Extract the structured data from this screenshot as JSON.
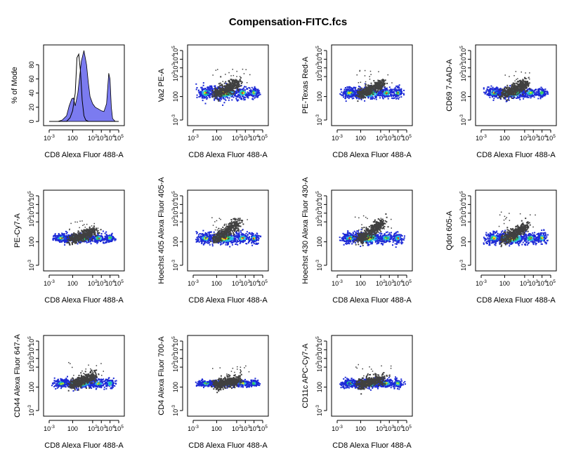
{
  "title": "Compensation-FITC.fcs",
  "colors": {
    "histogram_fill": "#7b7bf0",
    "overlay_points": "#404040",
    "density_low": "#1e2bd6",
    "density_mid1": "#2fb8e8",
    "density_mid2": "#22c46a",
    "density_mid3": "#e8e81a",
    "density_high": "#e81a1a"
  },
  "chart_data": [
    {
      "type": "area",
      "xlabel": "CD8 Alexa Fluor 488-A",
      "ylabel": "% of Mode",
      "yticks": [
        "0",
        "20",
        "40",
        "60",
        "80"
      ],
      "ylim": [
        0,
        100
      ],
      "xscale": "log",
      "xticks": [
        {
          "m": "10",
          "e": "-3"
        },
        {
          "m": "100",
          "e": ""
        },
        {
          "m": "10",
          "e": "2"
        },
        {
          "m": "10",
          "e": "3"
        },
        {
          "m": "10",
          "e": "4"
        },
        {
          "m": "10",
          "e": "5"
        }
      ],
      "series": [
        {
          "style": "filled",
          "x": [
            -3,
            -2,
            -1.5,
            -1,
            -0.7,
            -0.4,
            -0.2,
            0,
            0.3,
            0.7,
            1.0,
            1.3,
            1.5,
            1.7,
            2.0,
            2.3,
            2.6,
            3.0,
            3.3,
            3.6,
            3.85,
            4.0,
            4.15,
            4.3,
            4.6,
            5
          ],
          "y": [
            0,
            0,
            2,
            8,
            22,
            32,
            33,
            22,
            40,
            85,
            100,
            80,
            55,
            35,
            25,
            20,
            18,
            15,
            14,
            25,
            68,
            60,
            20,
            4,
            0,
            0
          ]
        },
        {
          "style": "outline",
          "x": [
            -3,
            -1.0,
            -0.6,
            -0.3,
            0.0,
            0.2,
            0.4,
            0.6,
            0.8,
            1.0,
            1.2,
            1.5,
            2.0,
            5
          ],
          "y": [
            0,
            0,
            5,
            15,
            40,
            90,
            95,
            70,
            30,
            8,
            2,
            0,
            0,
            0
          ]
        }
      ]
    },
    {
      "type": "scatter",
      "xlabel": "CD8 Alexa Fluor 488-A",
      "ylabel": "Va2 PE-A",
      "xscale": "log",
      "yscale": "log"
    },
    {
      "type": "scatter",
      "xlabel": "CD8 Alexa Fluor 488-A",
      "ylabel": "PE-Texas Red-A",
      "xscale": "log",
      "yscale": "log"
    },
    {
      "type": "scatter",
      "xlabel": "CD8 Alexa Fluor 488-A",
      "ylabel": "CD69 7-AAD-A",
      "xscale": "log",
      "yscale": "log"
    },
    {
      "type": "scatter",
      "xlabel": "CD8 Alexa Fluor 488-A",
      "ylabel": "PE-Cy7-A",
      "xscale": "log",
      "yscale": "log"
    },
    {
      "type": "scatter",
      "xlabel": "CD8 Alexa Fluor 488-A",
      "ylabel": "Hoechst 405 Alexa Fluor 405-A",
      "xscale": "log",
      "yscale": "log"
    },
    {
      "type": "scatter",
      "xlabel": "CD8 Alexa Fluor 488-A",
      "ylabel": "Hoechst 430 Alexa Fluor 430-A",
      "xscale": "log",
      "yscale": "log"
    },
    {
      "type": "scatter",
      "xlabel": "CD8 Alexa Fluor 488-A",
      "ylabel": "Qdot 605-A",
      "xscale": "log",
      "yscale": "log"
    },
    {
      "type": "scatter",
      "xlabel": "CD8 Alexa Fluor 488-A",
      "ylabel": "CD44 Alexa Fluor 647-A",
      "xscale": "log",
      "yscale": "log"
    },
    {
      "type": "scatter",
      "xlabel": "CD8 Alexa Fluor 488-A",
      "ylabel": "CD4 Alexa Fluor 700-A",
      "xscale": "log",
      "yscale": "log"
    },
    {
      "type": "scatter",
      "xlabel": "CD8 Alexa Fluor 488-A",
      "ylabel": "CD11c APC-Cy7-A",
      "xscale": "log",
      "yscale": "log"
    }
  ],
  "log_ticks": [
    {
      "m": "10",
      "e": "-3"
    },
    {
      "m": "100",
      "e": ""
    },
    {
      "m": "10",
      "e": "2"
    },
    {
      "m": "10",
      "e": "3"
    },
    {
      "m": "10",
      "e": "4"
    },
    {
      "m": "10",
      "e": "5"
    }
  ]
}
